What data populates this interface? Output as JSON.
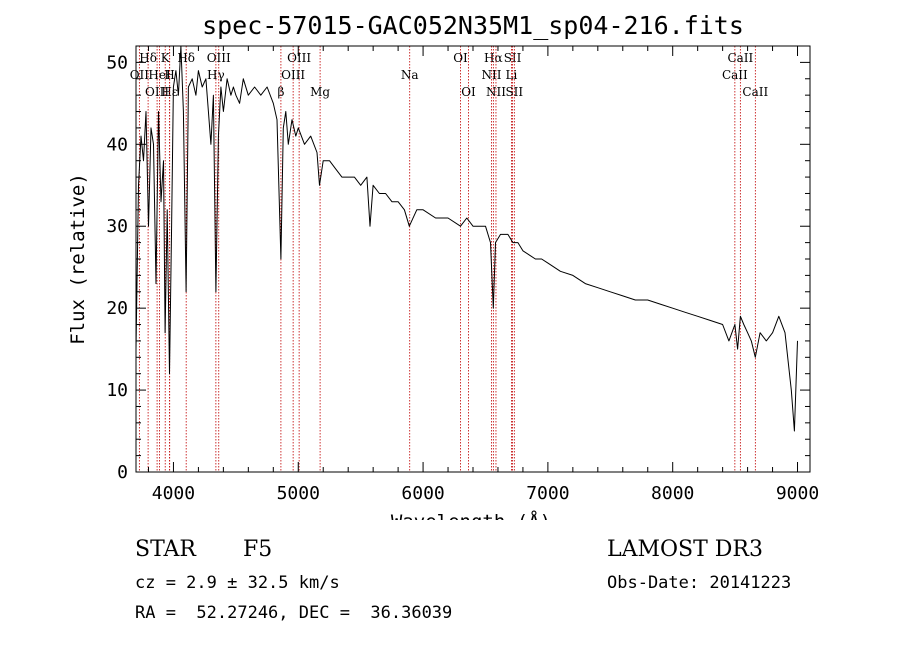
{
  "chart_data": {
    "type": "line",
    "title": "spec-57015-GAC052N35M1_sp04-216.fits",
    "xlabel": "Wavelength (Å)",
    "ylabel": "Flux (relative)",
    "xlim": [
      3700,
      9100
    ],
    "ylim": [
      0,
      52
    ],
    "xticks": [
      4000,
      5000,
      6000,
      7000,
      8000,
      9000
    ],
    "yticks": [
      0,
      10,
      20,
      30,
      40,
      50
    ],
    "grid": false,
    "colors": {
      "spectrum": "#000000",
      "lines": "#c00000"
    },
    "series": [
      {
        "name": "spectrum",
        "x": [
          3700,
          3720,
          3740,
          3760,
          3780,
          3800,
          3820,
          3840,
          3860,
          3880,
          3900,
          3920,
          3933,
          3950,
          3968,
          3985,
          4000,
          4020,
          4040,
          4060,
          4080,
          4101,
          4120,
          4150,
          4180,
          4200,
          4230,
          4260,
          4280,
          4300,
          4320,
          4340,
          4360,
          4380,
          4400,
          4430,
          4460,
          4480,
          4500,
          4530,
          4560,
          4600,
          4650,
          4700,
          4750,
          4800,
          4830,
          4861,
          4880,
          4900,
          4920,
          4950,
          4980,
          5000,
          5050,
          5100,
          5150,
          5170,
          5200,
          5250,
          5300,
          5350,
          5400,
          5450,
          5500,
          5550,
          5575,
          5600,
          5650,
          5700,
          5750,
          5800,
          5850,
          5890,
          5950,
          6000,
          6100,
          6200,
          6300,
          6350,
          6400,
          6450,
          6500,
          6540,
          6563,
          6580,
          6620,
          6680,
          6720,
          6760,
          6800,
          6850,
          6900,
          6950,
          7000,
          7100,
          7200,
          7300,
          7400,
          7500,
          7600,
          7700,
          7800,
          7900,
          8000,
          8100,
          8200,
          8300,
          8400,
          8450,
          8498,
          8520,
          8542,
          8570,
          8600,
          8630,
          8662,
          8700,
          8750,
          8800,
          8850,
          8900,
          8950,
          8975,
          9000
        ],
        "y": [
          15,
          35,
          41,
          38,
          44,
          30,
          42,
          40,
          23,
          44,
          33,
          38,
          17,
          32,
          12,
          30,
          47,
          49,
          46,
          52,
          44,
          22,
          47,
          48,
          46,
          49,
          47,
          48,
          44,
          40,
          46,
          22,
          41,
          47,
          44,
          48,
          46,
          47,
          46,
          45,
          48,
          46,
          47,
          46,
          47,
          45,
          43,
          26,
          42,
          44,
          40,
          43,
          41,
          42,
          40,
          41,
          39,
          35,
          38,
          38,
          37,
          36,
          36,
          36,
          35,
          36,
          30,
          35,
          34,
          34,
          33,
          33,
          32,
          30,
          32,
          32,
          31,
          31,
          30,
          31,
          30,
          30,
          30,
          28,
          20,
          28,
          29,
          29,
          28,
          28,
          27,
          26.5,
          26,
          26,
          25.5,
          24.5,
          24,
          23,
          22.5,
          22,
          21.5,
          21,
          21,
          20.5,
          20,
          19.5,
          19,
          18.5,
          18,
          16,
          18,
          15,
          19,
          18,
          17,
          16,
          14,
          17,
          16,
          17,
          19,
          17,
          10,
          5,
          16
        ]
      }
    ],
    "lines": [
      {
        "label": "Hδ",
        "x": 3797,
        "row": 1
      },
      {
        "label": "OII",
        "x": 3727,
        "row": 2
      },
      {
        "label": "OIII",
        "x": 3869,
        "row": 3
      },
      {
        "label": "K",
        "x": 3934,
        "row": 1
      },
      {
        "label": "HeI",
        "x": 3889,
        "row": 2
      },
      {
        "label": "Hε",
        "x": 3970,
        "row": 3
      },
      {
        "label": "Hδ",
        "x": 4102,
        "row": 1
      },
      {
        "label": "H",
        "x": 3969,
        "row": 2
      },
      {
        "label": "OIII",
        "x": 4363,
        "row": 1
      },
      {
        "label": "Hγ",
        "x": 4340,
        "row": 2
      },
      {
        "label": "OIII",
        "x": 5007,
        "row": 1
      },
      {
        "label": "OIII",
        "x": 4959,
        "row": 2
      },
      {
        "label": "β",
        "x": 4861,
        "row": 3
      },
      {
        "label": "Mg",
        "x": 5175,
        "row": 3
      },
      {
        "label": "Na",
        "x": 5893,
        "row": 2
      },
      {
        "label": "OI",
        "x": 6300,
        "row": 1
      },
      {
        "label": "OI",
        "x": 6364,
        "row": 3
      },
      {
        "label": "Hα",
        "x": 6563,
        "row": 1
      },
      {
        "label": "NII",
        "x": 6548,
        "row": 2
      },
      {
        "label": "NII",
        "x": 6584,
        "row": 3
      },
      {
        "label": "SII",
        "x": 6717,
        "row": 1
      },
      {
        "label": "Li",
        "x": 6708,
        "row": 2
      },
      {
        "label": "SII",
        "x": 6731,
        "row": 3
      },
      {
        "label": "CaII",
        "x": 8542,
        "row": 1
      },
      {
        "label": "CaII",
        "x": 8498,
        "row": 2
      },
      {
        "label": "CaII",
        "x": 8662,
        "row": 3
      }
    ]
  },
  "info": {
    "object_class": "STAR",
    "subclass": "F5",
    "survey": "LAMOST DR3",
    "redshift": "cz = 2.9 ± 32.5 km/s",
    "obs_date": "Obs-Date: 20141223",
    "coords": "RA =  52.27246, DEC =  36.36039"
  }
}
